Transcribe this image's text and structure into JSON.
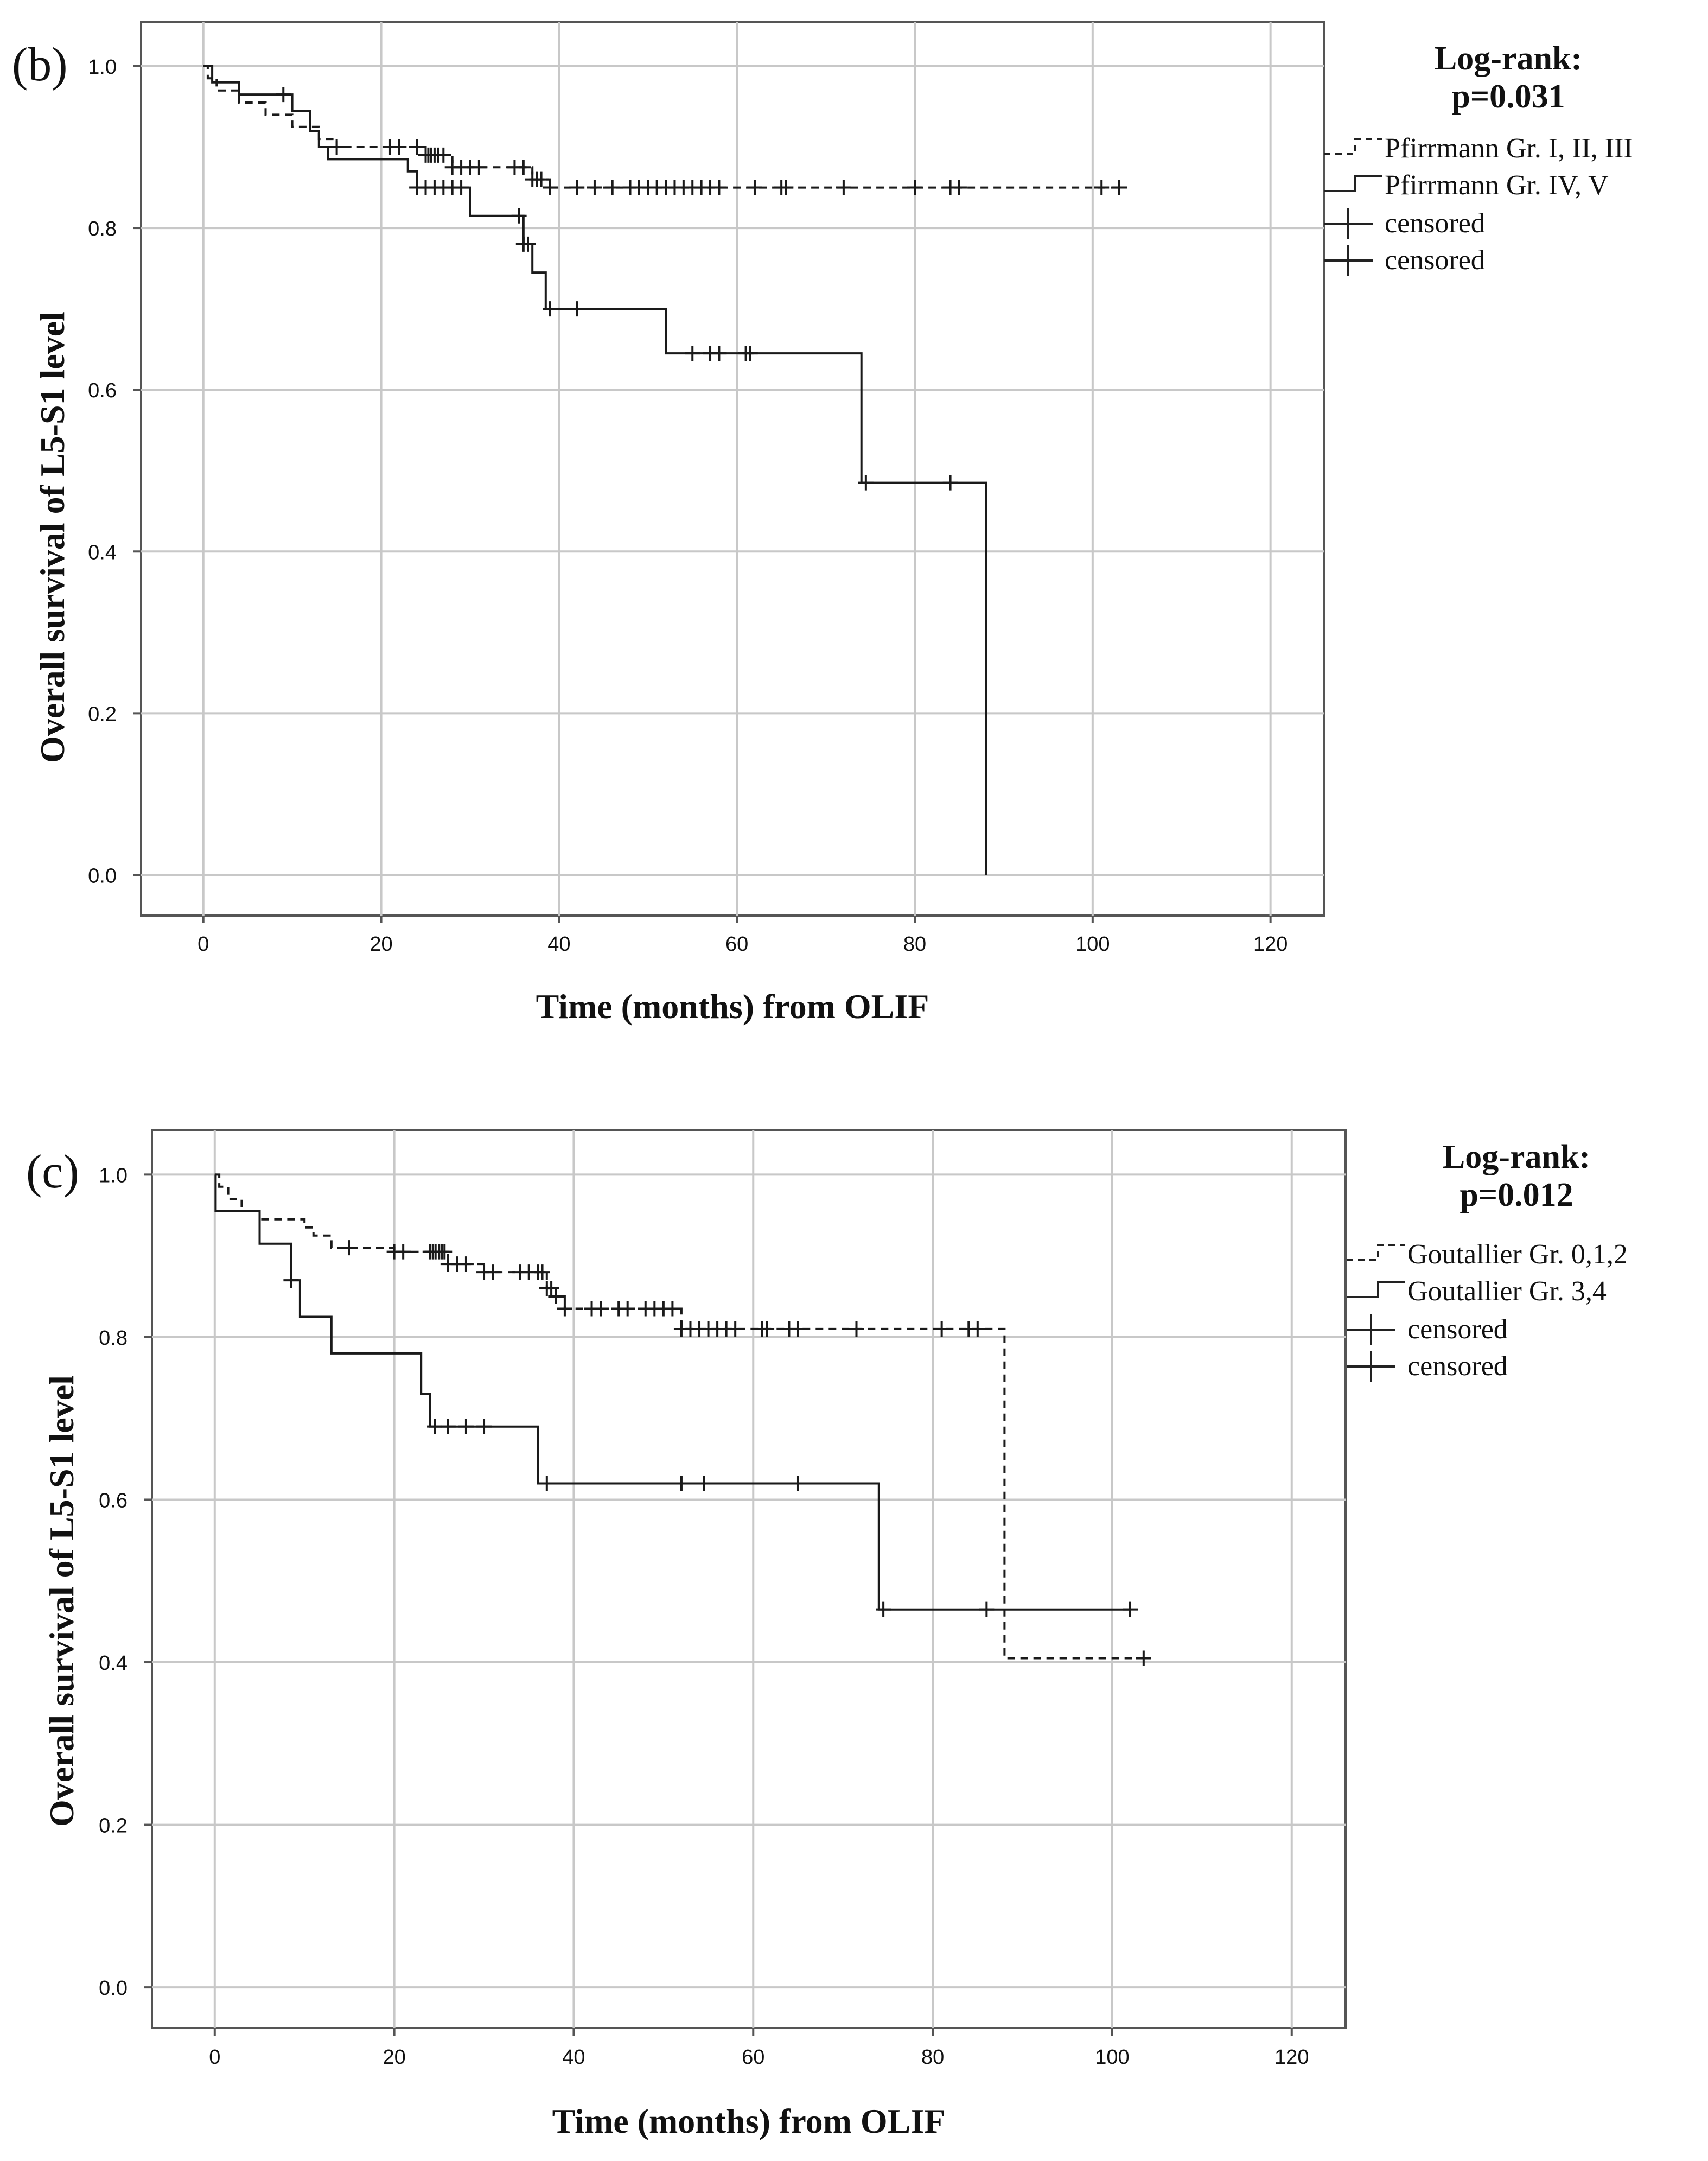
{
  "chart_data": [
    {
      "type": "line",
      "panel_label": "(b)",
      "xlabel": "Time (months) from OLIF",
      "ylabel": "Overall survival of L5-S1 level",
      "xlim": [
        -7,
        126
      ],
      "ylim": [
        -0.05,
        1.055
      ],
      "xticks": [
        0,
        20,
        40,
        60,
        80,
        100,
        120
      ],
      "yticks": [
        "0.0",
        "0.2",
        "0.4",
        "0.6",
        "0.8",
        "1.0"
      ],
      "grid": true,
      "logrank_title": "Log-rank:",
      "logrank_p": "p=0.031",
      "legend_position": "right",
      "legend": [
        "Pfirrmann Gr. I, II, III",
        "Pfirrmann Gr. IV, V",
        "censored",
        "censored"
      ],
      "series": [
        {
          "name": "Pfirrmann Gr. I, II, III",
          "style": "dashed",
          "steps": [
            [
              0,
              1.0
            ],
            [
              0.5,
              0.985
            ],
            [
              1.5,
              0.97
            ],
            [
              4,
              0.955
            ],
            [
              7,
              0.94
            ],
            [
              10,
              0.925
            ],
            [
              13,
              0.91
            ],
            [
              15,
              0.9
            ],
            [
              25,
              0.89
            ],
            [
              28,
              0.875
            ],
            [
              37,
              0.86
            ],
            [
              39,
              0.85
            ],
            [
              103,
              0.85
            ]
          ],
          "censored": [
            15,
            21,
            22,
            24,
            25,
            25.3,
            25.6,
            26,
            26.4,
            27,
            28,
            29,
            30,
            31,
            35,
            36,
            37,
            37.5,
            38,
            39,
            42,
            44,
            46,
            48,
            49,
            50,
            51,
            52,
            53,
            54,
            55,
            56,
            57,
            58,
            62,
            65,
            65.5,
            72,
            80,
            84,
            85,
            101,
            103
          ]
        },
        {
          "name": "Pfirrmann Gr. IV, V",
          "style": "solid",
          "steps": [
            [
              0,
              1.0
            ],
            [
              1,
              0.98
            ],
            [
              4,
              0.965
            ],
            [
              10,
              0.945
            ],
            [
              12,
              0.92
            ],
            [
              13,
              0.9
            ],
            [
              14,
              0.885
            ],
            [
              23,
              0.87
            ],
            [
              24,
              0.85
            ],
            [
              30,
              0.815
            ],
            [
              36,
              0.78
            ],
            [
              37,
              0.745
            ],
            [
              38.5,
              0.7
            ],
            [
              52,
              0.645
            ],
            [
              74,
              0.485
            ],
            [
              88,
              0.0
            ]
          ],
          "censored": [
            9,
            24,
            25,
            26,
            27,
            28,
            29,
            35.5,
            36,
            36.5,
            39,
            42,
            55,
            57,
            58,
            61,
            61.5,
            74.5,
            84
          ]
        }
      ]
    },
    {
      "type": "line",
      "panel_label": "(c)",
      "xlabel": "Time (months) from OLIF",
      "ylabel": "Overall survival of L5-S1 level",
      "xlim": [
        -7,
        126
      ],
      "ylim": [
        -0.05,
        1.055
      ],
      "xticks": [
        0,
        20,
        40,
        60,
        80,
        100,
        120
      ],
      "yticks": [
        "0.0",
        "0.2",
        "0.4",
        "0.6",
        "0.8",
        "1.0"
      ],
      "grid": true,
      "logrank_title": "Log-rank:",
      "logrank_p": "p=0.012",
      "legend_position": "right",
      "legend": [
        "Goutallier Gr. 0,1,2",
        "Goutallier Gr. 3,4",
        "censored",
        "censored"
      ],
      "series": [
        {
          "name": "Goutallier Gr. 0,1,2",
          "style": "dashed",
          "steps": [
            [
              0,
              1.0
            ],
            [
              0.5,
              0.985
            ],
            [
              1.5,
              0.97
            ],
            [
              3,
              0.955
            ],
            [
              5,
              0.945
            ],
            [
              10,
              0.935
            ],
            [
              11,
              0.925
            ],
            [
              13,
              0.91
            ],
            [
              20,
              0.905
            ],
            [
              26,
              0.89
            ],
            [
              30,
              0.88
            ],
            [
              37,
              0.86
            ],
            [
              38,
              0.85
            ],
            [
              39,
              0.835
            ],
            [
              52,
              0.81
            ],
            [
              88,
              0.405
            ],
            [
              103.5,
              0.405
            ]
          ],
          "censored": [
            15,
            20,
            21,
            24,
            24.3,
            24.6,
            25,
            25.3,
            25.6,
            26,
            27,
            28,
            30,
            31,
            34,
            35,
            36,
            36.5,
            37,
            37.5,
            38,
            39,
            42,
            43,
            45,
            46,
            48,
            49,
            50,
            51,
            52,
            53,
            54,
            55,
            56,
            57,
            58,
            61,
            61.5,
            64,
            65,
            71.5,
            81,
            84,
            85,
            103.5
          ]
        },
        {
          "name": "Goutallier Gr. 3,4",
          "style": "solid",
          "steps": [
            [
              0,
              1.0
            ],
            [
              0.1,
              0.955
            ],
            [
              5,
              0.915
            ],
            [
              8.5,
              0.87
            ],
            [
              9.5,
              0.825
            ],
            [
              13,
              0.78
            ],
            [
              23,
              0.73
            ],
            [
              24,
              0.69
            ],
            [
              36,
              0.62
            ],
            [
              74,
              0.465
            ],
            [
              102,
              0.465
            ]
          ],
          "censored": [
            8.5,
            24.5,
            26,
            28,
            30,
            37,
            52,
            54.5,
            65,
            74.5,
            86,
            102
          ]
        }
      ]
    }
  ]
}
